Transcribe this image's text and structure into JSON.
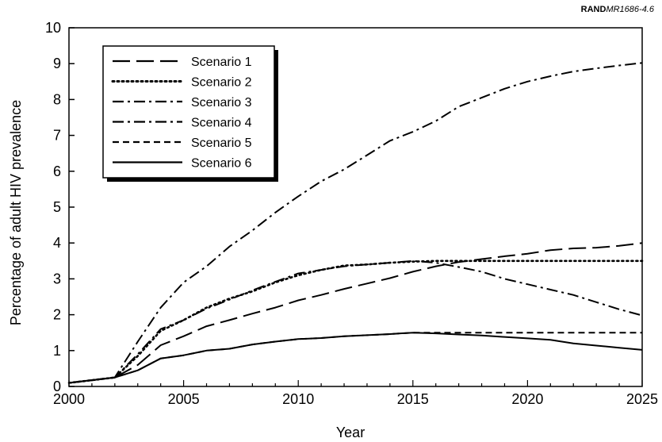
{
  "figure_ref": {
    "org": "RAND",
    "code": "MR1686-4.6"
  },
  "chart_data": {
    "type": "line",
    "title": "",
    "xlabel": "Year",
    "ylabel": "Percentage of adult HIV prevalence",
    "xlim": [
      2000,
      2025
    ],
    "ylim": [
      0,
      10
    ],
    "x_ticks": [
      2000,
      2005,
      2010,
      2015,
      2020,
      2025
    ],
    "y_ticks": [
      0,
      1,
      2,
      3,
      4,
      5,
      6,
      7,
      8,
      9,
      10
    ],
    "grid": false,
    "legend_position": "top-left",
    "series": [
      {
        "name": "Scenario 1",
        "dash": "long-dash",
        "points": [
          [
            2000,
            0.1
          ],
          [
            2002,
            0.25
          ],
          [
            2003,
            0.6
          ],
          [
            2004,
            1.15
          ],
          [
            2005,
            1.4
          ],
          [
            2006,
            1.68
          ],
          [
            2007,
            1.85
          ],
          [
            2008,
            2.03
          ],
          [
            2009,
            2.2
          ],
          [
            2010,
            2.4
          ],
          [
            2011,
            2.55
          ],
          [
            2012,
            2.72
          ],
          [
            2013,
            2.87
          ],
          [
            2014,
            3.02
          ],
          [
            2015,
            3.2
          ],
          [
            2016,
            3.35
          ],
          [
            2017,
            3.47
          ],
          [
            2018,
            3.55
          ],
          [
            2019,
            3.63
          ],
          [
            2020,
            3.7
          ],
          [
            2021,
            3.8
          ],
          [
            2022,
            3.85
          ],
          [
            2023,
            3.87
          ],
          [
            2024,
            3.92
          ],
          [
            2025,
            4.0
          ]
        ]
      },
      {
        "name": "Scenario 2",
        "dash": "dotted",
        "points": [
          [
            2000,
            0.1
          ],
          [
            2002,
            0.25
          ],
          [
            2003,
            0.85
          ],
          [
            2004,
            1.55
          ],
          [
            2005,
            1.85
          ],
          [
            2006,
            2.2
          ],
          [
            2007,
            2.45
          ],
          [
            2008,
            2.65
          ],
          [
            2009,
            2.9
          ],
          [
            2010,
            3.1
          ],
          [
            2011,
            3.25
          ],
          [
            2012,
            3.37
          ],
          [
            2013,
            3.4
          ],
          [
            2014,
            3.45
          ],
          [
            2015,
            3.48
          ],
          [
            2016,
            3.5
          ],
          [
            2017,
            3.5
          ],
          [
            2018,
            3.5
          ],
          [
            2019,
            3.5
          ],
          [
            2020,
            3.5
          ],
          [
            2021,
            3.5
          ],
          [
            2022,
            3.5
          ],
          [
            2023,
            3.5
          ],
          [
            2024,
            3.5
          ],
          [
            2025,
            3.5
          ]
        ]
      },
      {
        "name": "Scenario 3",
        "dash": "dash-dot",
        "points": [
          [
            2000,
            0.1
          ],
          [
            2002,
            0.25
          ],
          [
            2003,
            1.25
          ],
          [
            2004,
            2.2
          ],
          [
            2005,
            2.9
          ],
          [
            2006,
            3.35
          ],
          [
            2007,
            3.9
          ],
          [
            2008,
            4.35
          ],
          [
            2009,
            4.85
          ],
          [
            2010,
            5.3
          ],
          [
            2011,
            5.72
          ],
          [
            2012,
            6.05
          ],
          [
            2013,
            6.45
          ],
          [
            2014,
            6.85
          ],
          [
            2015,
            7.1
          ],
          [
            2016,
            7.4
          ],
          [
            2017,
            7.8
          ],
          [
            2018,
            8.05
          ],
          [
            2019,
            8.3
          ],
          [
            2020,
            8.5
          ],
          [
            2021,
            8.65
          ],
          [
            2022,
            8.78
          ],
          [
            2023,
            8.87
          ],
          [
            2024,
            8.95
          ],
          [
            2025,
            9.02
          ]
        ]
      },
      {
        "name": "Scenario 4",
        "dash": "dash-dot",
        "points": [
          [
            2000,
            0.1
          ],
          [
            2002,
            0.25
          ],
          [
            2003,
            0.9
          ],
          [
            2004,
            1.6
          ],
          [
            2005,
            1.85
          ],
          [
            2006,
            2.17
          ],
          [
            2007,
            2.42
          ],
          [
            2008,
            2.68
          ],
          [
            2009,
            2.92
          ],
          [
            2010,
            3.15
          ],
          [
            2011,
            3.25
          ],
          [
            2012,
            3.35
          ],
          [
            2013,
            3.4
          ],
          [
            2014,
            3.45
          ],
          [
            2015,
            3.5
          ],
          [
            2016,
            3.45
          ],
          [
            2017,
            3.33
          ],
          [
            2018,
            3.2
          ],
          [
            2019,
            3.0
          ],
          [
            2020,
            2.85
          ],
          [
            2021,
            2.7
          ],
          [
            2022,
            2.55
          ],
          [
            2023,
            2.35
          ],
          [
            2024,
            2.15
          ],
          [
            2025,
            1.98
          ]
        ]
      },
      {
        "name": "Scenario 5",
        "dash": "short-dash",
        "points": [
          [
            2000,
            0.1
          ],
          [
            2002,
            0.25
          ],
          [
            2003,
            0.45
          ],
          [
            2004,
            0.78
          ],
          [
            2005,
            0.87
          ],
          [
            2006,
            1.0
          ],
          [
            2007,
            1.05
          ],
          [
            2008,
            1.17
          ],
          [
            2009,
            1.25
          ],
          [
            2010,
            1.32
          ],
          [
            2011,
            1.35
          ],
          [
            2012,
            1.4
          ],
          [
            2013,
            1.43
          ],
          [
            2014,
            1.46
          ],
          [
            2015,
            1.5
          ],
          [
            2016,
            1.5
          ],
          [
            2017,
            1.5
          ],
          [
            2018,
            1.5
          ],
          [
            2019,
            1.5
          ],
          [
            2020,
            1.5
          ],
          [
            2021,
            1.5
          ],
          [
            2022,
            1.5
          ],
          [
            2023,
            1.5
          ],
          [
            2024,
            1.5
          ],
          [
            2025,
            1.5
          ]
        ]
      },
      {
        "name": "Scenario 6",
        "dash": "solid",
        "points": [
          [
            2000,
            0.1
          ],
          [
            2002,
            0.25
          ],
          [
            2003,
            0.45
          ],
          [
            2004,
            0.78
          ],
          [
            2005,
            0.87
          ],
          [
            2006,
            1.0
          ],
          [
            2007,
            1.05
          ],
          [
            2008,
            1.17
          ],
          [
            2009,
            1.25
          ],
          [
            2010,
            1.32
          ],
          [
            2011,
            1.35
          ],
          [
            2012,
            1.4
          ],
          [
            2013,
            1.43
          ],
          [
            2014,
            1.46
          ],
          [
            2015,
            1.5
          ],
          [
            2016,
            1.48
          ],
          [
            2017,
            1.45
          ],
          [
            2018,
            1.42
          ],
          [
            2019,
            1.38
          ],
          [
            2020,
            1.34
          ],
          [
            2021,
            1.3
          ],
          [
            2022,
            1.2
          ],
          [
            2023,
            1.14
          ],
          [
            2024,
            1.08
          ],
          [
            2025,
            1.02
          ]
        ]
      }
    ]
  }
}
